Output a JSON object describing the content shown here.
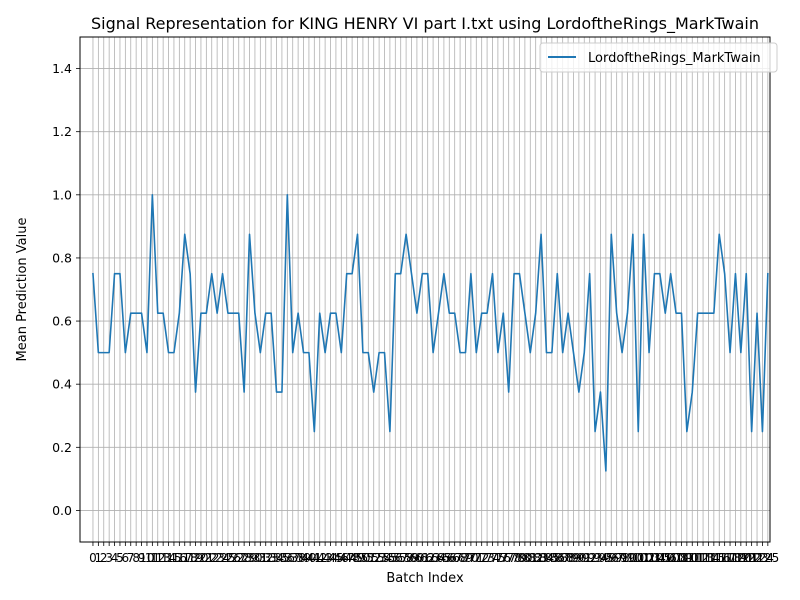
{
  "chart_data": {
    "type": "line",
    "title": "Signal Representation for KING HENRY VI part I.txt using LordoftheRings_MarkTwain",
    "xlabel": "Batch Index",
    "ylabel": "Mean Prediction Value",
    "ylim": [
      -0.1,
      1.5
    ],
    "xlim": [
      -2.4,
      125.4
    ],
    "yticks": [
      "0.0",
      "0.2",
      "0.4",
      "0.6",
      "0.8",
      "1.0",
      "1.2",
      "1.4"
    ],
    "grid": true,
    "legend_position": "upper right",
    "series": [
      {
        "name": "LordoftheRings_MarkTwain",
        "color": "#1f77b4",
        "values": [
          0.75,
          0.5,
          0.5,
          0.5,
          0.75,
          0.75,
          0.5,
          0.625,
          0.625,
          0.625,
          0.5,
          1.0,
          0.625,
          0.625,
          0.5,
          0.5,
          0.625,
          0.875,
          0.75,
          0.375,
          0.625,
          0.625,
          0.75,
          0.625,
          0.75,
          0.625,
          0.625,
          0.625,
          0.375,
          0.875,
          0.625,
          0.5,
          0.625,
          0.625,
          0.375,
          0.375,
          1.0,
          0.5,
          0.625,
          0.5,
          0.5,
          0.25,
          0.625,
          0.5,
          0.625,
          0.625,
          0.5,
          0.75,
          0.75,
          0.875,
          0.5,
          0.5,
          0.375,
          0.5,
          0.5,
          0.25,
          0.75,
          0.75,
          0.875,
          0.75,
          0.625,
          0.75,
          0.75,
          0.5,
          0.625,
          0.75,
          0.625,
          0.625,
          0.5,
          0.5,
          0.75,
          0.5,
          0.625,
          0.625,
          0.75,
          0.5,
          0.625,
          0.375,
          0.75,
          0.75,
          0.625,
          0.5,
          0.625,
          0.875,
          0.5,
          0.5,
          0.75,
          0.5,
          0.625,
          0.5,
          0.375,
          0.5,
          0.75,
          0.25,
          0.375,
          0.125,
          0.875,
          0.625,
          0.5,
          0.625,
          0.875,
          0.25,
          0.875,
          0.5,
          0.75,
          0.75,
          0.625,
          0.75,
          0.625,
          0.625,
          0.25,
          0.375,
          0.625,
          0.625,
          0.625,
          0.625,
          0.875,
          0.75,
          0.5,
          0.75,
          0.5,
          0.75,
          0.25,
          0.625,
          0.25,
          0.75
        ]
      }
    ]
  }
}
